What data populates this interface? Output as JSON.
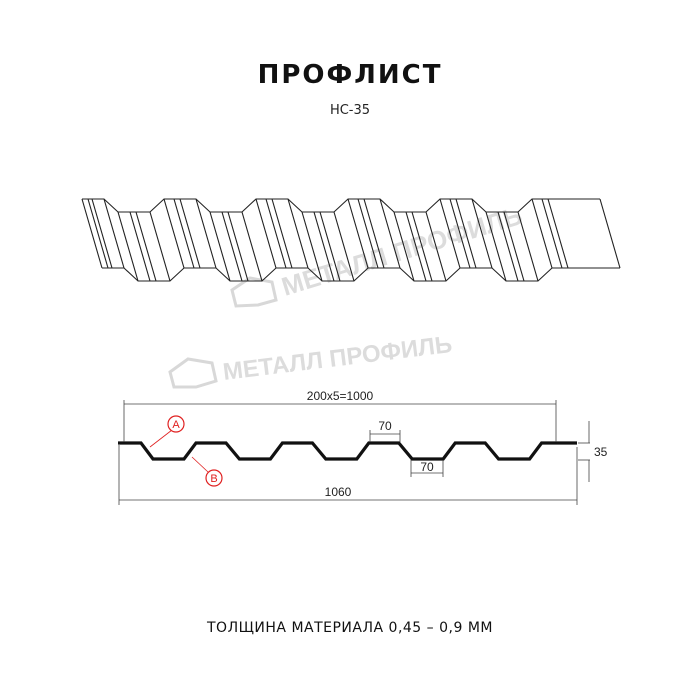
{
  "title": "ПРОФЛИСТ",
  "subtitle": "НС-35",
  "watermark": "МЕТАЛЛ ПРОФИЛЬ",
  "dimensions": {
    "pitch_total": "200x5=1000",
    "top_width": "70",
    "bottom_width": "70",
    "height": "35",
    "total_width": "1060"
  },
  "markers": {
    "a": "A",
    "b": "B"
  },
  "footer": "ТОЛЩИНА МАТЕРИАЛА 0,45 – 0,9 ММ",
  "colors": {
    "profile": "#111111",
    "marker": "#e02020",
    "watermark": "#dcdcdc"
  }
}
